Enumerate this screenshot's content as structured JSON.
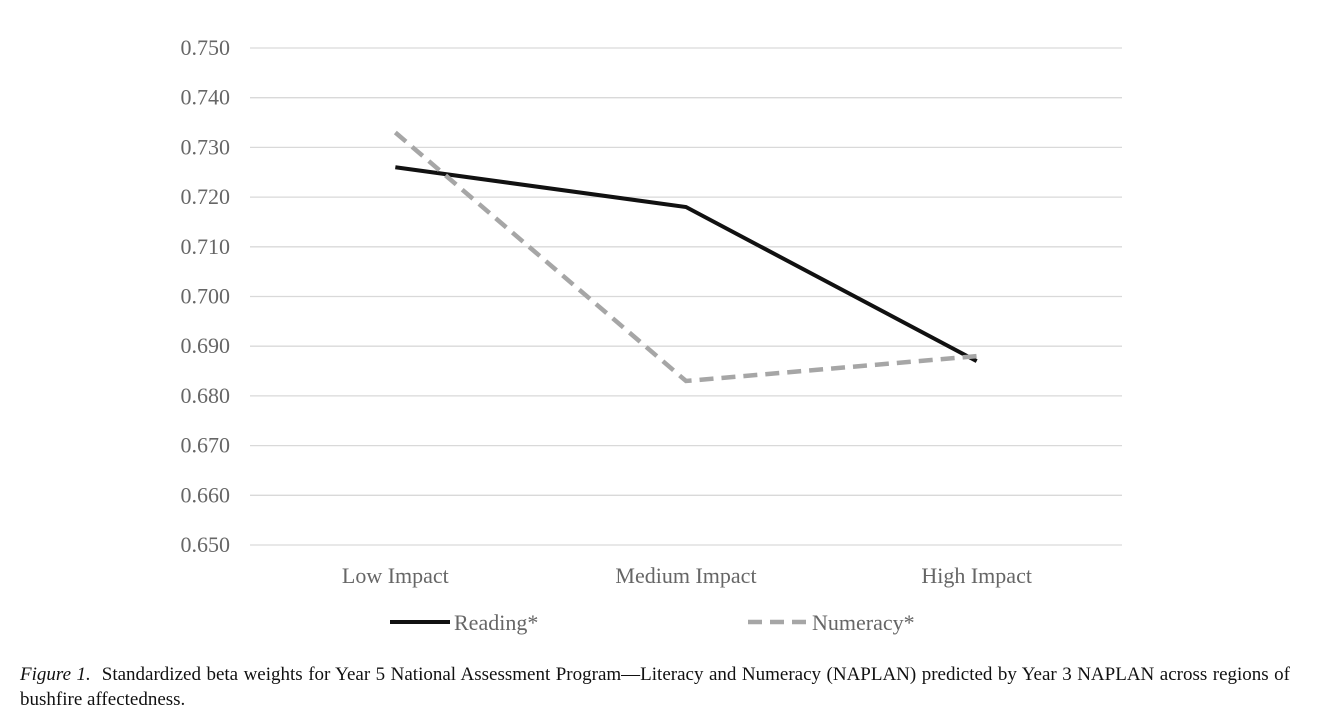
{
  "chart_data": {
    "type": "line",
    "title": "",
    "xlabel": "",
    "ylabel": "",
    "categories": [
      "Low Impact",
      "Medium Impact",
      "High Impact"
    ],
    "y_ticks": [
      "0.750",
      "0.740",
      "0.730",
      "0.720",
      "0.710",
      "0.700",
      "0.690",
      "0.680",
      "0.670",
      "0.660",
      "0.650"
    ],
    "ylim": [
      0.65,
      0.75
    ],
    "grid": true,
    "legend_position": "bottom",
    "series": [
      {
        "name": "Reading*",
        "values": [
          0.726,
          0.718,
          0.687
        ],
        "color": "#111111",
        "style": "solid"
      },
      {
        "name": "Numeracy*",
        "values": [
          0.733,
          0.683,
          0.688
        ],
        "color": "#a6a6a6",
        "style": "dashed"
      }
    ]
  },
  "caption": {
    "figure_number": "Figure 1.",
    "text": "Standardized beta weights for Year 5 National Assessment Program—Literacy and Numeracy (NAPLAN) predicted by Year 3 NAPLAN across regions of bushfire affectedness."
  }
}
